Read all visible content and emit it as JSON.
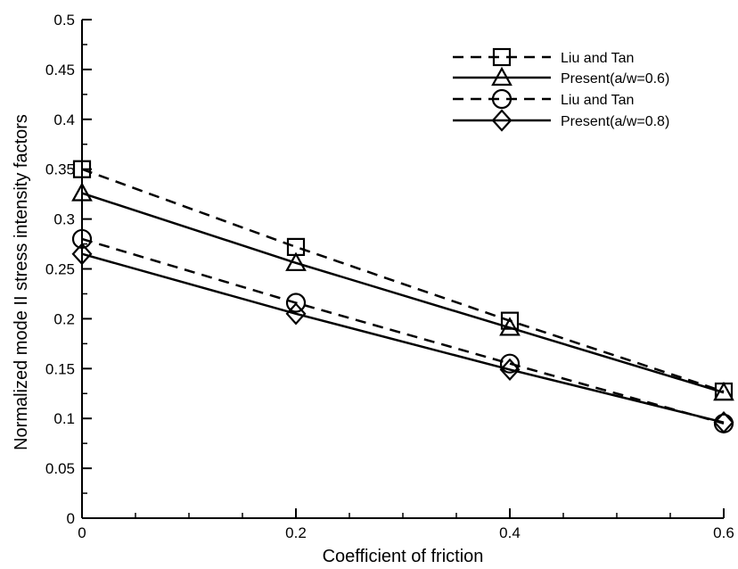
{
  "chart_data": {
    "type": "line",
    "xlabel": "Coefficient of friction",
    "ylabel": "Normalized mode II stress intensity factors",
    "xlim": [
      0,
      0.6
    ],
    "ylim": [
      0,
      0.5
    ],
    "x_ticks": [
      "0",
      "0.2",
      "0.4",
      "0.6"
    ],
    "y_ticks": [
      "0",
      "0.05",
      "0.1",
      "0.15",
      "0.2",
      "0.25",
      "0.3",
      "0.35",
      "0.4",
      "0.45",
      "0.5"
    ],
    "x": [
      0,
      0.2,
      0.4,
      0.6
    ],
    "grid": false,
    "legend_position": "top-right",
    "series": [
      {
        "name": "Liu and Tan",
        "marker": "square",
        "line": "dashed",
        "values": [
          0.35,
          0.272,
          0.198,
          0.127
        ]
      },
      {
        "name": "Present(a/w=0.6)",
        "marker": "triangle",
        "line": "solid",
        "values": [
          0.326,
          0.256,
          0.191,
          0.126
        ]
      },
      {
        "name": "Liu and Tan",
        "marker": "circle",
        "line": "dashed",
        "values": [
          0.28,
          0.216,
          0.155,
          0.095
        ]
      },
      {
        "name": "Present(a/w=0.8)",
        "marker": "diamond",
        "line": "solid",
        "values": [
          0.265,
          0.205,
          0.149,
          0.096
        ]
      }
    ]
  }
}
